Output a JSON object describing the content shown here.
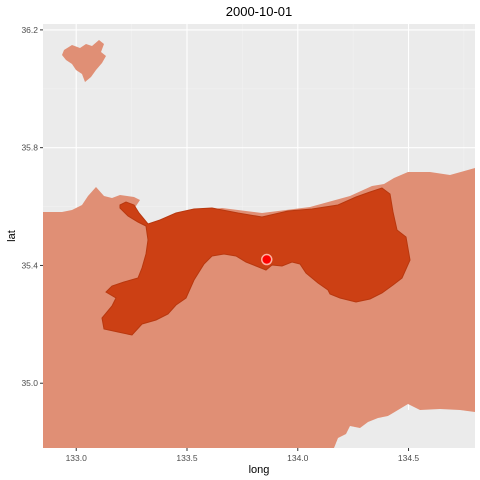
{
  "chart_data": {
    "type": "map",
    "title": "2000-10-01",
    "xlabel": "long",
    "ylabel": "lat",
    "xlim": [
      132.85,
      134.8
    ],
    "ylim": [
      34.78,
      36.22
    ],
    "x_ticks": [
      133.0,
      133.5,
      134.0,
      134.5
    ],
    "x_tick_labels": [
      "133.0",
      "133.5",
      "134.0",
      "134.5"
    ],
    "y_ticks": [
      35.0,
      35.4,
      35.8,
      36.2
    ],
    "y_tick_labels": [
      "35.0",
      "35.4",
      "35.8",
      "36.2"
    ],
    "grid": true,
    "point": {
      "long": 133.86,
      "lat": 35.42,
      "color": "#ff0000"
    },
    "colors": {
      "panel_background": "#ebebeb",
      "grid_major": "#ffffff",
      "grid_minor": "#f2f2f2",
      "land_fill": "#e08f75",
      "highlight_fill": "#cc4014",
      "highlight_stroke": "#b8380f",
      "point_fill": "#ff0000",
      "point_stroke": "#ffb0a0"
    }
  }
}
